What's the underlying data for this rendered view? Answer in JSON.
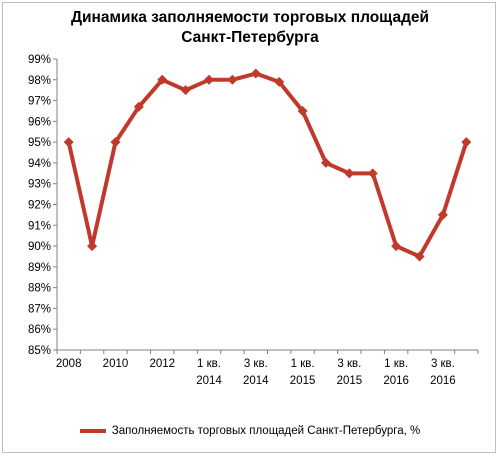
{
  "chart_data": {
    "type": "line",
    "title_line1": "Динамика заполняемости торговых площадей",
    "title_line2": "Санкт-Петербурга",
    "ylim": [
      85,
      99
    ],
    "y_ticks": [
      "85%",
      "86%",
      "87%",
      "88%",
      "89%",
      "90%",
      "91%",
      "92%",
      "93%",
      "94%",
      "95%",
      "96%",
      "97%",
      "98%",
      "99%"
    ],
    "x_ticks": [
      {
        "index": 0,
        "line1": "2008",
        "line2": ""
      },
      {
        "index": 2,
        "line1": "2010",
        "line2": ""
      },
      {
        "index": 4,
        "line1": "2012",
        "line2": ""
      },
      {
        "index": 6,
        "line1": "1 кв.",
        "line2": "2014"
      },
      {
        "index": 8,
        "line1": "3 кв.",
        "line2": "2014"
      },
      {
        "index": 10,
        "line1": "1 кв.",
        "line2": "2015"
      },
      {
        "index": 12,
        "line1": "3 кв.",
        "line2": "2015"
      },
      {
        "index": 14,
        "line1": "1 кв.",
        "line2": "2016"
      },
      {
        "index": 16,
        "line1": "3 кв.",
        "line2": "2016"
      }
    ],
    "series": [
      {
        "name": "Заполняемость торговых площадей Санкт-Петербурга, %",
        "color": "#c0392b",
        "values": [
          95,
          90,
          95,
          96.7,
          98,
          97.5,
          98,
          98,
          98.3,
          97.9,
          96.5,
          94,
          93.5,
          93.5,
          90,
          89.5,
          91.5,
          95
        ]
      }
    ],
    "grid": false,
    "legend_position": "bottom"
  }
}
